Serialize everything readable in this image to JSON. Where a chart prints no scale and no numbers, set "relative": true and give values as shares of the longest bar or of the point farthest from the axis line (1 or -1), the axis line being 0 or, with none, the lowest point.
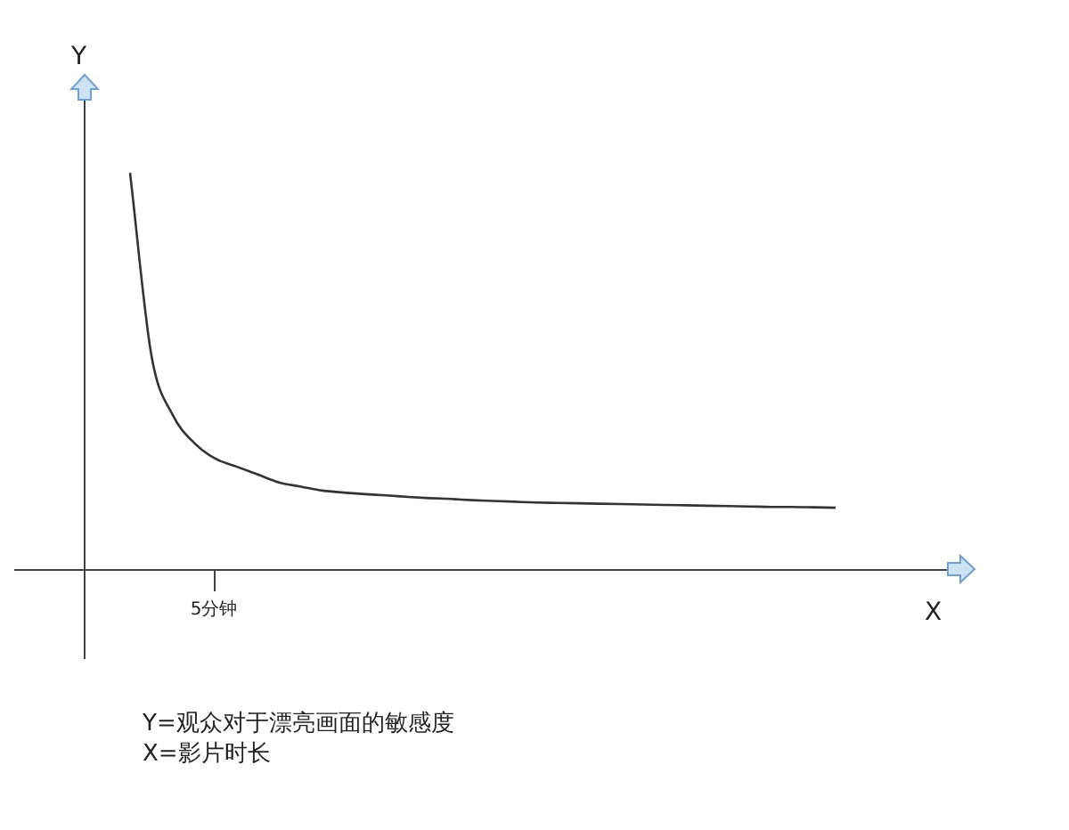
{
  "chart_data": {
    "type": "line",
    "relative": true,
    "xlabel": "X",
    "ylabel": "Y",
    "categories": [
      null,
      null,
      null,
      null,
      null,
      null,
      null,
      null,
      null,
      null,
      null,
      null,
      null,
      null,
      null,
      null,
      null,
      null,
      null,
      null,
      null,
      null,
      null,
      null,
      null,
      null,
      null,
      null,
      null,
      null,
      null,
      null,
      null,
      null
    ],
    "series": [
      {
        "color": "#333333",
        "values": [
          1,
          0.54,
          0.39,
          0.32,
          0.28,
          0.26,
          0.24,
          0.22,
          0.21,
          0.2,
          0.195,
          0.191,
          0.188,
          0.184,
          0.181,
          0.179,
          0.176,
          0.174,
          0.172,
          0.17,
          0.169,
          0.168,
          0.167,
          0.166,
          0.165,
          0.164,
          0.163,
          0.162,
          0.161,
          0.16,
          0.159,
          0.159,
          0.158,
          0.157
        ]
      }
    ],
    "legend": false,
    "marker": "none",
    "line_style": "solid",
    "annotations": [
      "5分钟",
      "Y=观众对于漂亮画面的敏感度",
      "X=影片时长"
    ]
  }
}
